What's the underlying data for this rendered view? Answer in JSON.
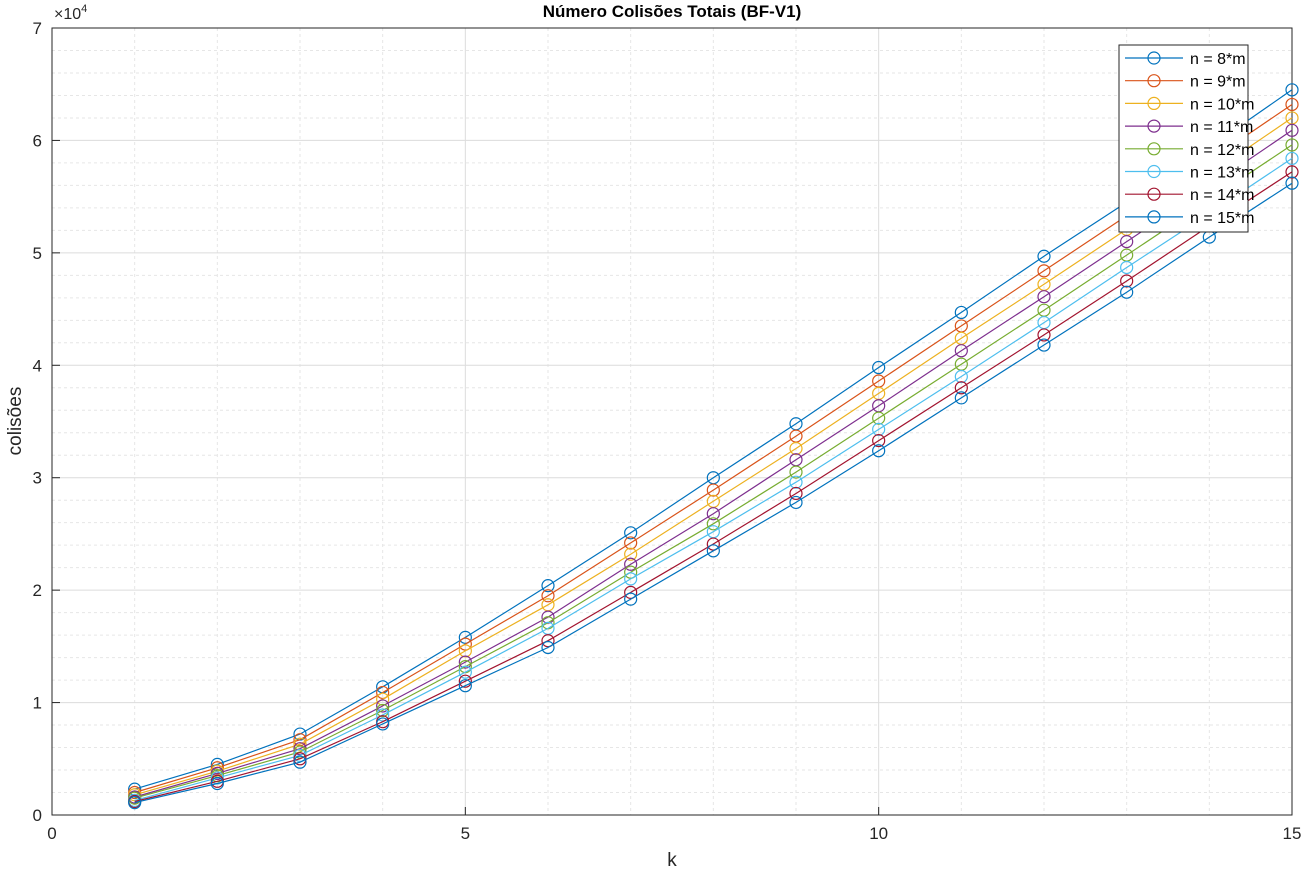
{
  "chart_data": {
    "type": "line",
    "title": "Número Colisões Totais (BF-V1)",
    "xlabel": "k",
    "ylabel": "colisões",
    "y_exponent_base": "×10",
    "y_exponent_power": "4",
    "xlim": [
      0,
      15
    ],
    "ylim": [
      0,
      7
    ],
    "x_ticks": [
      0,
      5,
      10,
      15
    ],
    "y_ticks": [
      0,
      1,
      2,
      3,
      4,
      5,
      6,
      7
    ],
    "grid": true,
    "minor_grid": true,
    "legend_position": "top-right",
    "marker": "circle",
    "x": [
      1,
      2,
      3,
      4,
      5,
      6,
      7,
      8,
      9,
      10,
      11,
      12,
      13,
      14,
      15
    ],
    "series": [
      {
        "name": "n = 8*m",
        "color": "#0072BD",
        "values": [
          0.23,
          0.45,
          0.72,
          1.14,
          1.58,
          2.04,
          2.51,
          3.0,
          3.48,
          3.98,
          4.47,
          4.97,
          5.45,
          5.94,
          6.45
        ]
      },
      {
        "name": "n = 9*m",
        "color": "#D95319",
        "values": [
          0.2,
          0.42,
          0.67,
          1.09,
          1.52,
          1.95,
          2.42,
          2.89,
          3.37,
          3.86,
          4.35,
          4.84,
          5.33,
          5.82,
          6.32
        ]
      },
      {
        "name": "n = 10*m",
        "color": "#EDB120",
        "values": [
          0.18,
          0.39,
          0.63,
          1.03,
          1.46,
          1.87,
          2.32,
          2.79,
          3.26,
          3.75,
          4.24,
          4.72,
          5.21,
          5.7,
          6.2
        ]
      },
      {
        "name": "n = 11*m",
        "color": "#7E2F8E",
        "values": [
          0.16,
          0.37,
          0.59,
          0.97,
          1.36,
          1.76,
          2.23,
          2.68,
          3.16,
          3.64,
          4.13,
          4.61,
          5.1,
          5.59,
          6.09
        ]
      },
      {
        "name": "n = 12*m",
        "color": "#77AC30",
        "values": [
          0.15,
          0.35,
          0.56,
          0.93,
          1.32,
          1.71,
          2.16,
          2.59,
          3.05,
          3.53,
          4.01,
          4.49,
          4.98,
          5.47,
          5.96
        ]
      },
      {
        "name": "n = 13*m",
        "color": "#4DBEEE",
        "values": [
          0.13,
          0.33,
          0.53,
          0.89,
          1.27,
          1.66,
          2.1,
          2.52,
          2.96,
          3.43,
          3.9,
          4.38,
          4.87,
          5.35,
          5.84
        ]
      },
      {
        "name": "n = 14*m",
        "color": "#A2142F",
        "values": [
          0.12,
          0.3,
          0.5,
          0.83,
          1.19,
          1.55,
          1.98,
          2.41,
          2.86,
          3.33,
          3.8,
          4.27,
          4.75,
          5.24,
          5.72
        ]
      },
      {
        "name": "n = 15*m",
        "color": "#0072BD",
        "values": [
          0.11,
          0.28,
          0.47,
          0.81,
          1.15,
          1.49,
          1.92,
          2.35,
          2.78,
          3.24,
          3.71,
          4.18,
          4.65,
          5.14,
          5.62
        ]
      }
    ]
  }
}
